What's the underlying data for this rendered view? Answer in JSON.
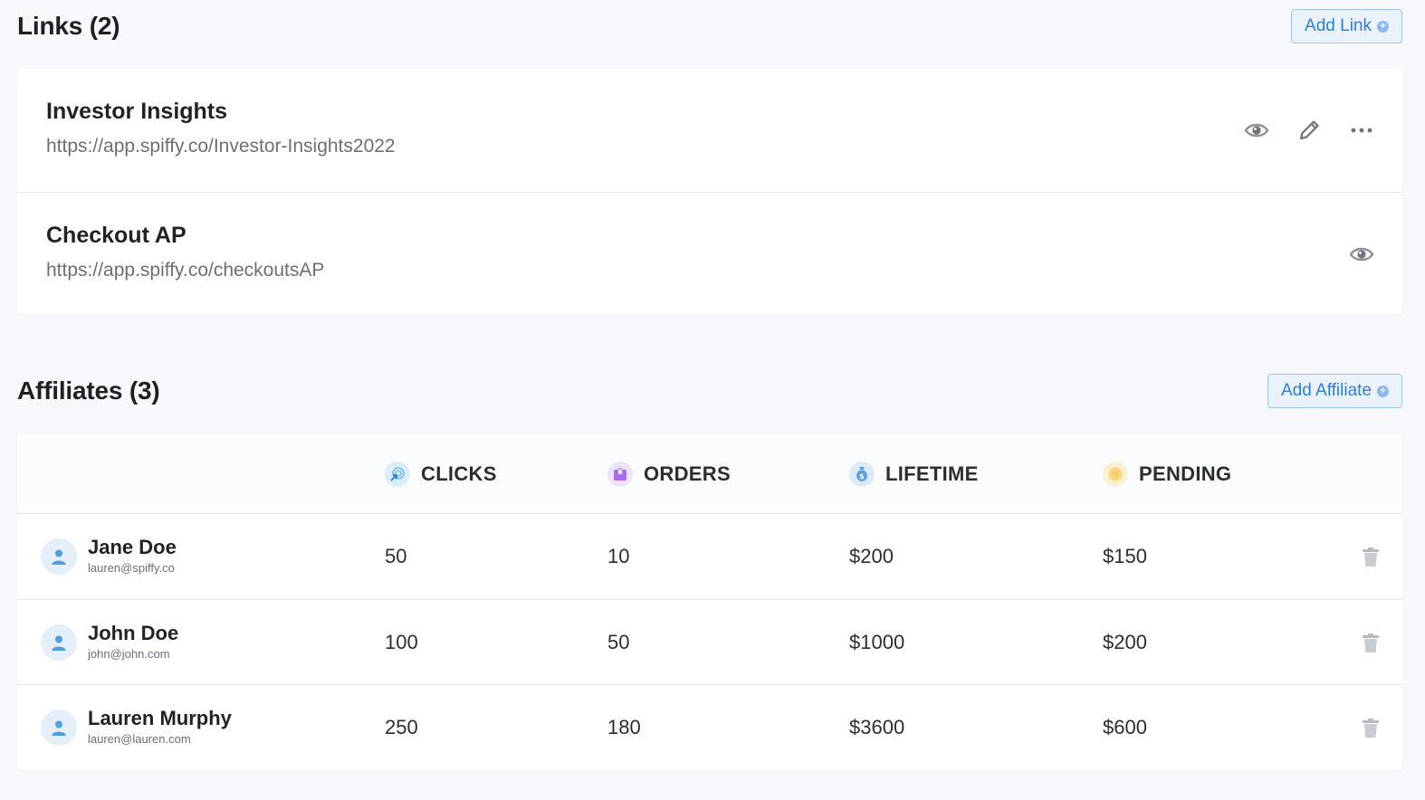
{
  "links": {
    "title": "Links (2)",
    "add_label": "Add Link",
    "items": [
      {
        "name": "Investor Insights",
        "url": "https://app.spiffy.co/Investor-Insights2022"
      },
      {
        "name": "Checkout AP",
        "url": "https://app.spiffy.co/checkoutsAP"
      }
    ]
  },
  "affiliates": {
    "title": "Affiliates (3)",
    "add_label": "Add Affiliate",
    "columns": [
      "CLICKS",
      "ORDERS",
      "LIFETIME",
      "PENDING"
    ],
    "rows": [
      {
        "name": "Jane Doe",
        "email": "lauren@spiffy.co",
        "clicks": "50",
        "orders": "10",
        "lifetime": "$200",
        "pending": "$150"
      },
      {
        "name": "John Doe",
        "email": "john@john.com",
        "clicks": "100",
        "orders": "50",
        "lifetime": "$1000",
        "pending": "$200"
      },
      {
        "name": "Lauren Murphy",
        "email": "lauren@lauren.com",
        "clicks": "250",
        "orders": "180",
        "lifetime": "$3600",
        "pending": "$600"
      }
    ]
  },
  "icons": {
    "view": "eye-icon",
    "edit": "pencil-icon",
    "more": "more-dots-icon",
    "add": "plus-circle-icon",
    "avatar": "user-icon",
    "delete": "trash-icon",
    "clicks": "cursor-click-icon",
    "orders": "box-icon",
    "lifetime": "money-bag-icon",
    "pending": "clock-icon"
  },
  "colors": {
    "accent": "#2f7ed8",
    "background": "#f6f8fb"
  }
}
